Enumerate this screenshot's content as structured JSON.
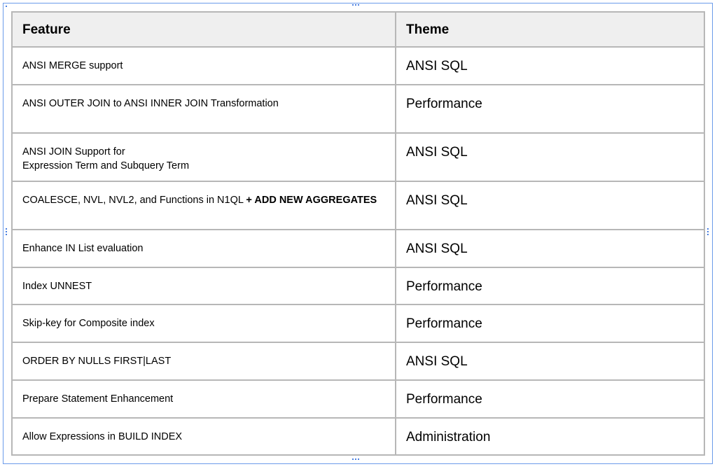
{
  "table": {
    "headers": [
      "Feature",
      "Theme"
    ],
    "rows": [
      {
        "feature": "ANSI MERGE support",
        "theme": "ANSI SQL"
      },
      {
        "feature": "ANSI OUTER JOIN to ANSI INNER JOIN Transformation",
        "theme": "Performance"
      },
      {
        "feature": "ANSI JOIN Support for",
        "feature_line2": "Expression Term and Subquery Term",
        "theme": "ANSI SQL"
      },
      {
        "feature": "COALESCE, NVL, NVL2, and Functions in N1QL ",
        "feature_bold": "+ ADD NEW AGGREGATES",
        "theme": "ANSI SQL"
      },
      {
        "feature": "Enhance IN List evaluation",
        "theme": "ANSI SQL"
      },
      {
        "feature": "Index UNNEST",
        "theme": "Performance"
      },
      {
        "feature": "Skip-key for Composite index",
        "theme": "Performance"
      },
      {
        "feature": "ORDER BY  NULLS FIRST|LAST",
        "theme": "ANSI SQL"
      },
      {
        "feature": "Prepare Statement Enhancement",
        "theme": "Performance"
      },
      {
        "feature": "Allow Expressions in BUILD INDEX",
        "theme": "Administration"
      }
    ]
  }
}
